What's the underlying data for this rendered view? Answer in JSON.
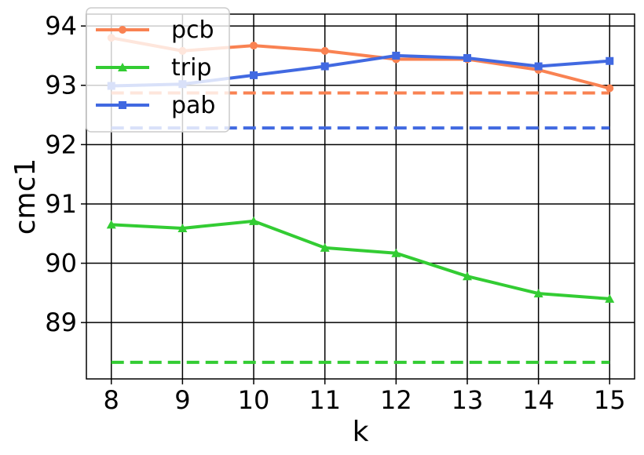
{
  "chart_data": {
    "type": "line",
    "xlabel": "k",
    "ylabel": "cmc1",
    "x": [
      8,
      9,
      10,
      11,
      12,
      13,
      14,
      15
    ],
    "xlim": [
      7.65,
      15.35
    ],
    "ylim": [
      88.05,
      94.2
    ],
    "yticks": [
      89,
      90,
      91,
      92,
      93,
      94
    ],
    "grid": true,
    "legend": "top-left",
    "series": [
      {
        "name": "pcb",
        "values": [
          93.8,
          93.58,
          93.67,
          93.58,
          93.44,
          93.44,
          93.26,
          92.95
        ],
        "color": "#f98252",
        "marker": "circle"
      },
      {
        "name": "trip",
        "values": [
          90.65,
          90.59,
          90.71,
          90.26,
          90.17,
          89.78,
          89.49,
          89.4
        ],
        "color": "#33cc33",
        "marker": "triangle"
      },
      {
        "name": "pab",
        "values": [
          92.99,
          93.02,
          93.17,
          93.32,
          93.5,
          93.46,
          93.32,
          93.41
        ],
        "color": "#4169e1",
        "marker": "square"
      }
    ],
    "baselines": [
      {
        "series": "pcb",
        "value": 92.87,
        "color": "#f98252",
        "style": "dashed"
      },
      {
        "series": "pab",
        "value": 92.28,
        "color": "#4169e1",
        "style": "dashed"
      },
      {
        "series": "trip",
        "value": 88.33,
        "color": "#33cc33",
        "style": "dashed"
      }
    ]
  }
}
